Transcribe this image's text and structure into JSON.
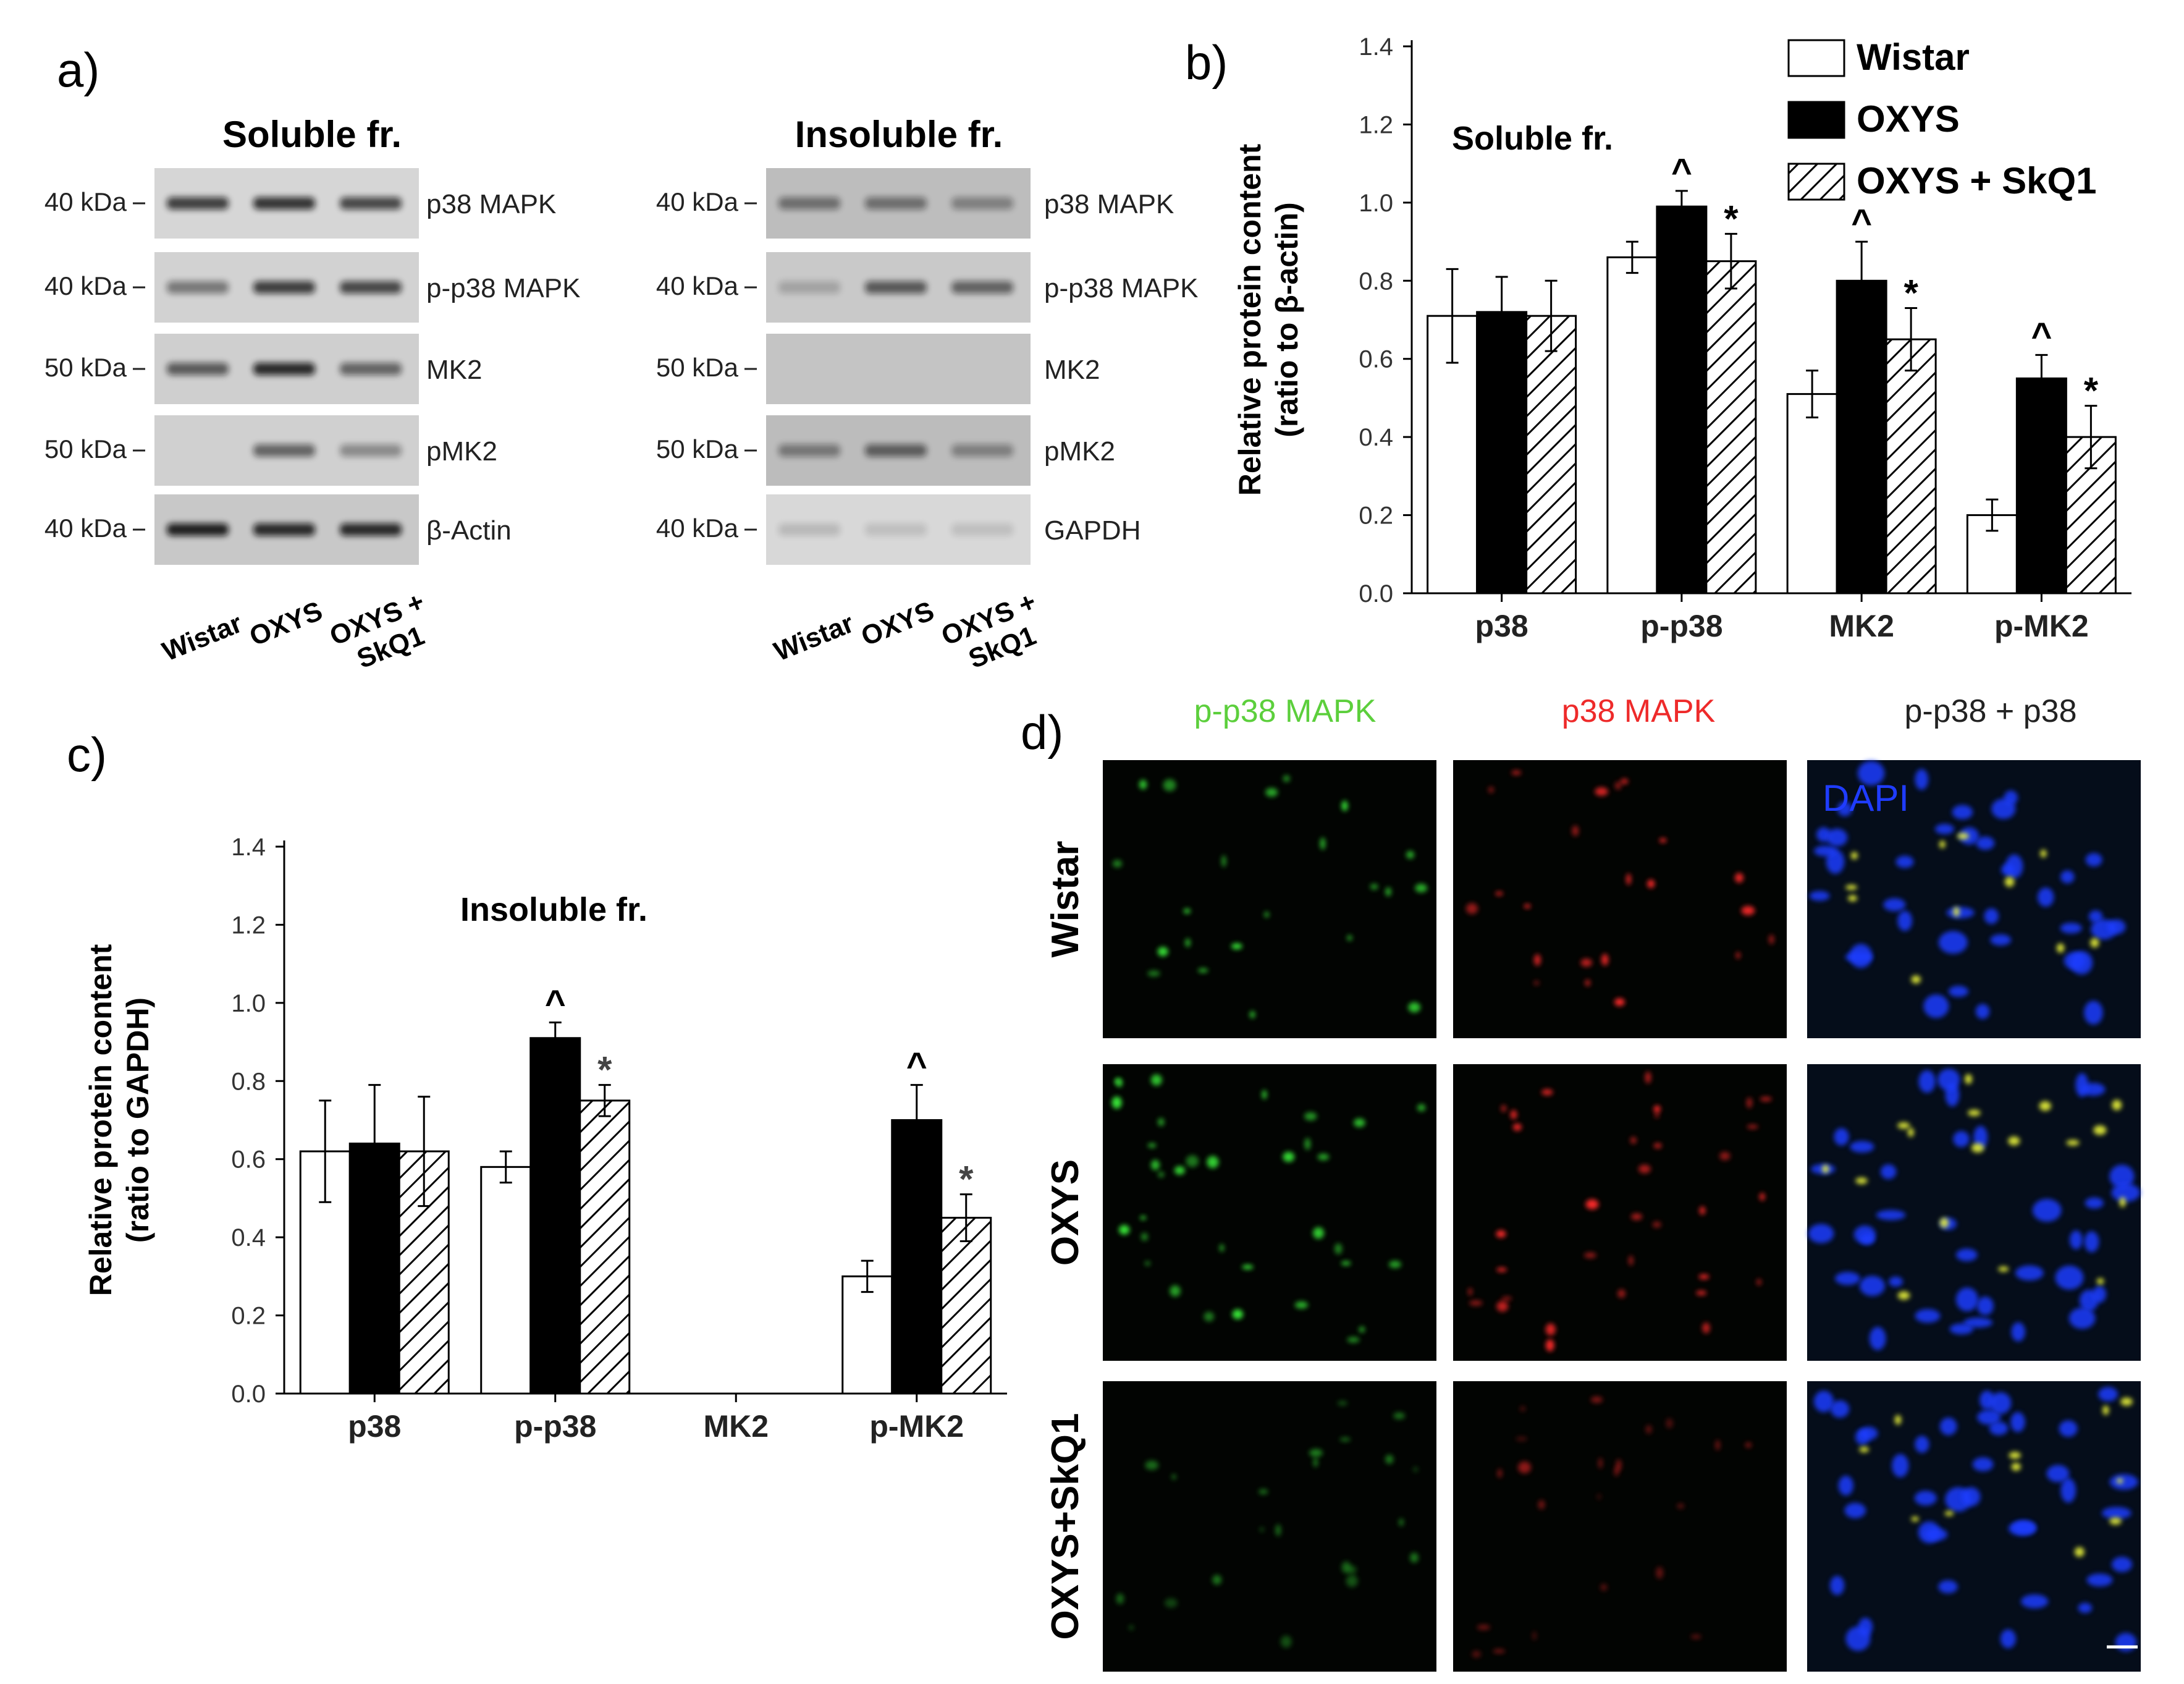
{
  "panels": {
    "a": {
      "letter": "a)",
      "soluble": {
        "title": "Soluble fr.",
        "markers": [
          "40 kDa",
          "40 kDa",
          "50 kDa",
          "50 kDa",
          "40 kDa"
        ],
        "bands": [
          "p38 MAPK",
          "p-p38 MAPK",
          "MK2",
          "pMK2",
          "β-Actin"
        ],
        "lanes": [
          "Wistar",
          "OXYS",
          "OXYS +",
          "SkQ1"
        ]
      },
      "insoluble": {
        "title": "Insoluble fr.",
        "markers": [
          "40 kDa",
          "40 kDa",
          "50 kDa",
          "50 kDa",
          "40 kDa"
        ],
        "bands": [
          "p38 MAPK",
          "p-p38 MAPK",
          "MK2",
          "pMK2",
          "GAPDH"
        ],
        "lanes": [
          "Wistar",
          "OXYS",
          "OXYS +",
          "SkQ1"
        ]
      }
    },
    "b": {
      "letter": "b)"
    },
    "c": {
      "letter": "c)"
    },
    "d": {
      "letter": "d)",
      "columns": [
        {
          "label": "p-p38 MAPK",
          "color": "#5ccf3c"
        },
        {
          "label": "p38 MAPK",
          "color": "#ee2a2a"
        },
        {
          "label": "p-p38  + p38",
          "color": "#222222"
        }
      ],
      "rows": [
        "Wistar",
        "OXYS",
        "OXYS+SkQ1"
      ],
      "dapi_label": "DAPI",
      "dapi_color": "#1f3cff"
    }
  },
  "chart_data": [
    {
      "type": "bar",
      "panel": "b",
      "title": "Soluble fr.",
      "ylabel": [
        "Relative protein content",
        "(ratio to β-actin)"
      ],
      "categories": [
        "p38",
        "p-p38",
        "MK2",
        "p-MK2"
      ],
      "ylim": [
        0,
        1.4
      ],
      "yticks": [
        "0.0",
        "0.2",
        "0.4",
        "0.6",
        "0.8",
        "1.0",
        "1.2",
        "1.4"
      ],
      "series": [
        {
          "name": "Wistar",
          "values": [
            0.71,
            0.86,
            0.51,
            0.2
          ],
          "errors": [
            0.12,
            0.04,
            0.06,
            0.04
          ]
        },
        {
          "name": "OXYS",
          "values": [
            0.72,
            0.99,
            0.8,
            0.55
          ],
          "errors": [
            0.09,
            0.04,
            0.1,
            0.06
          ]
        },
        {
          "name": "OXYS + SkQ1",
          "values": [
            0.71,
            0.85,
            0.65,
            0.4
          ],
          "errors": [
            0.09,
            0.07,
            0.08,
            0.08
          ]
        }
      ],
      "annotations": [
        {
          "category": "p-p38",
          "series": "OXYS",
          "text": "^"
        },
        {
          "category": "p-p38",
          "series": "OXYS + SkQ1",
          "text": "*"
        },
        {
          "category": "MK2",
          "series": "OXYS",
          "text": "^"
        },
        {
          "category": "MK2",
          "series": "OXYS + SkQ1",
          "text": "*"
        },
        {
          "category": "p-MK2",
          "series": "OXYS",
          "text": "^"
        },
        {
          "category": "p-MK2",
          "series": "OXYS + SkQ1",
          "text": "*"
        }
      ],
      "legend": "top-right",
      "grid": false,
      "series_styles": [
        "#ffffff",
        "#000000",
        "hatched"
      ]
    },
    {
      "type": "bar",
      "panel": "c",
      "title": "Insoluble fr.",
      "ylabel": [
        "Relative protein content",
        "(ratio to GAPDH)"
      ],
      "categories": [
        "p38",
        "p-p38",
        "MK2",
        "p-MK2"
      ],
      "ylim": [
        0,
        1.4
      ],
      "yticks": [
        "0.0",
        "0.2",
        "0.4",
        "0.6",
        "0.8",
        "1.0",
        "1.2",
        "1.4"
      ],
      "series": [
        {
          "name": "Wistar",
          "values": [
            0.62,
            0.58,
            null,
            0.3
          ],
          "errors": [
            0.13,
            0.04,
            null,
            0.04
          ]
        },
        {
          "name": "OXYS",
          "values": [
            0.64,
            0.91,
            null,
            0.7
          ],
          "errors": [
            0.15,
            0.04,
            null,
            0.09
          ]
        },
        {
          "name": "OXYS + SkQ1",
          "values": [
            0.62,
            0.75,
            null,
            0.45
          ],
          "errors": [
            0.14,
            0.04,
            null,
            0.06
          ]
        }
      ],
      "annotations": [
        {
          "category": "p-p38",
          "series": "OXYS",
          "text": "^"
        },
        {
          "category": "p-p38",
          "series": "OXYS + SkQ1",
          "text": "*"
        },
        {
          "category": "p-MK2",
          "series": "OXYS",
          "text": "^"
        },
        {
          "category": "p-MK2",
          "series": "OXYS + SkQ1",
          "text": "*"
        }
      ],
      "legend": "none",
      "grid": false,
      "series_styles": [
        "#ffffff",
        "#000000",
        "hatched"
      ]
    }
  ]
}
